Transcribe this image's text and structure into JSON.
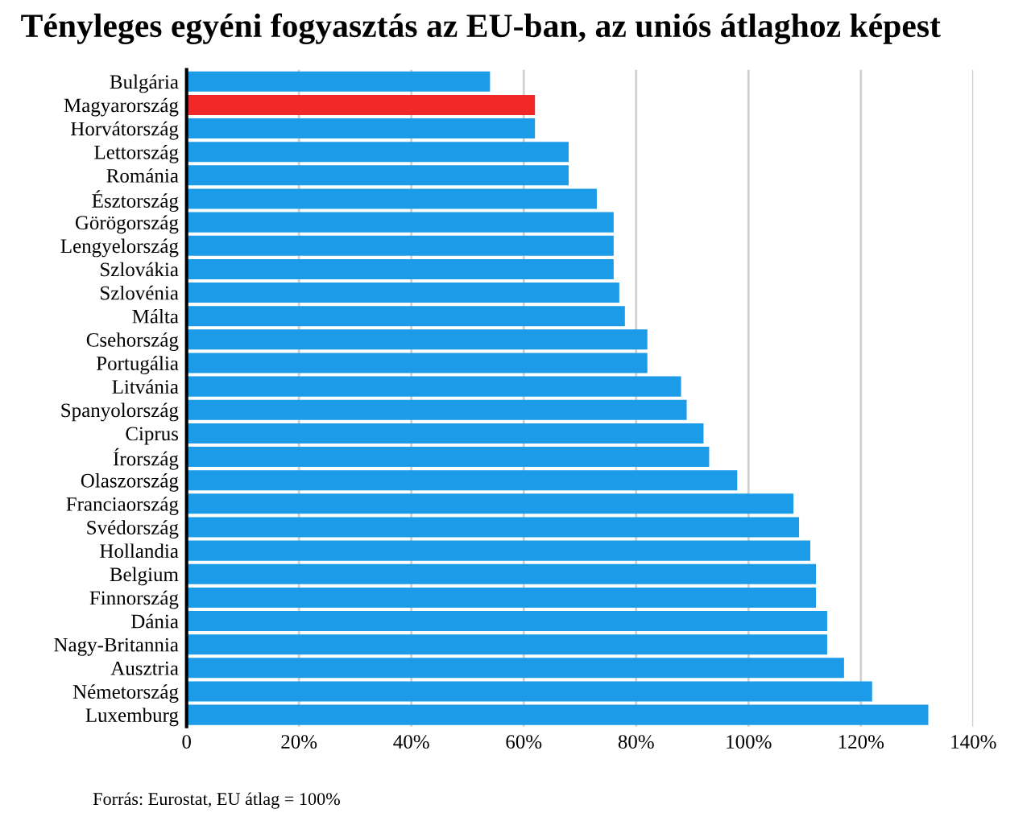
{
  "chart_data": {
    "type": "bar",
    "orientation": "horizontal",
    "title": "Tényleges egyéni fogyasztás az EU-ban, az uniós átlaghoz képest",
    "categories": [
      "Bulgária",
      "Magyarország",
      "Horvátország",
      "Lettország",
      "Románia",
      "Észtország",
      "Görögország",
      "Lengyelország",
      "Szlovákia",
      "Szlovénia",
      "Málta",
      "Csehország",
      "Portugália",
      "Litvánia",
      "Spanyolország",
      "Ciprus",
      "Írország",
      "Olaszország",
      "Franciaország",
      "Svédország",
      "Hollandia",
      "Belgium",
      "Finnország",
      "Dánia",
      "Nagy-Britannia",
      "Ausztria",
      "Németország",
      "Luxemburg"
    ],
    "values": [
      54,
      62,
      62,
      68,
      68,
      73,
      76,
      76,
      76,
      77,
      78,
      82,
      82,
      88,
      89,
      92,
      93,
      98,
      108,
      109,
      111,
      112,
      112,
      114,
      114,
      117,
      122,
      132
    ],
    "colors": [
      "#1b9be8",
      "#f02828",
      "#1b9be8",
      "#1b9be8",
      "#1b9be8",
      "#1b9be8",
      "#1b9be8",
      "#1b9be8",
      "#1b9be8",
      "#1b9be8",
      "#1b9be8",
      "#1b9be8",
      "#1b9be8",
      "#1b9be8",
      "#1b9be8",
      "#1b9be8",
      "#1b9be8",
      "#1b9be8",
      "#1b9be8",
      "#1b9be8",
      "#1b9be8",
      "#1b9be8",
      "#1b9be8",
      "#1b9be8",
      "#1b9be8",
      "#1b9be8",
      "#1b9be8",
      "#1b9be8"
    ],
    "xlim": [
      0,
      140
    ],
    "xticks": [
      0,
      {
        "value": 20,
        "label": "20%"
      },
      {
        "value": 40,
        "label": "40%"
      },
      {
        "value": 60,
        "label": "60%"
      },
      {
        "value": 80,
        "label": "80%"
      },
      {
        "value": 100,
        "label": "100%"
      },
      {
        "value": 120,
        "label": "120%"
      },
      {
        "value": 140,
        "label": "140%"
      }
    ],
    "grid": "x",
    "legend": false,
    "annotations": [
      "Forrás: Eurostat, EU átlag = 100%"
    ]
  }
}
